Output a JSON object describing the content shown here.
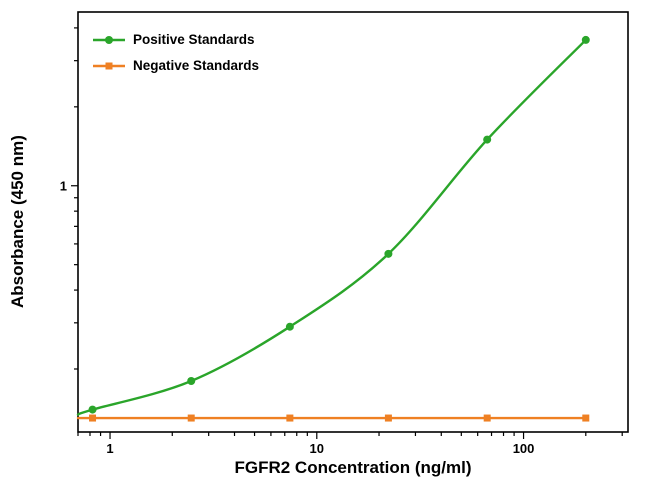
{
  "chart_data": {
    "type": "line",
    "title": "",
    "xlabel": "FGFR2 Concentration (ng/ml)",
    "ylabel": "Absorbance (450 nm)",
    "x_scale": "log",
    "y_scale": "log",
    "xlim": [
      0.7,
      320
    ],
    "ylim": [
      0.115,
      4.6
    ],
    "x_major_ticks": [
      1,
      10,
      100
    ],
    "x_tick_labels": [
      "1",
      "10",
      "100"
    ],
    "y_major_ticks": [
      1
    ],
    "y_tick_labels": [
      "1"
    ],
    "grid": false,
    "legend_position": "top-left",
    "x": [
      0.823,
      2.47,
      7.41,
      22.2,
      66.7,
      200
    ],
    "series": [
      {
        "name": "Positive Standards",
        "marker": "circle",
        "color": "#2aa52a",
        "values": [
          0.14,
          0.18,
          0.29,
          0.55,
          1.5,
          3.6
        ]
      },
      {
        "name": "Negative Standards",
        "marker": "square",
        "color": "#ef8023",
        "values": [
          0.13,
          0.13,
          0.13,
          0.13,
          0.13,
          0.13
        ]
      }
    ]
  }
}
